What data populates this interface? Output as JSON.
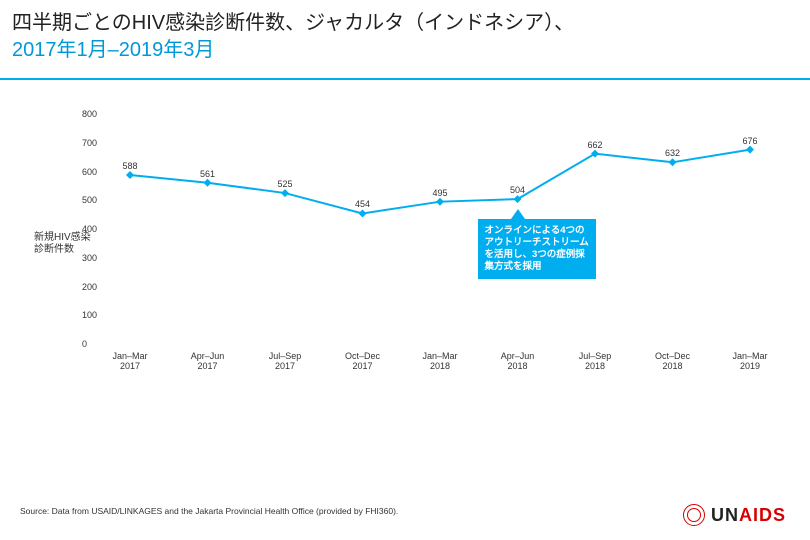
{
  "title": {
    "line1_prefix": "四半期ごとのHIV感染診断件数、ジャカルタ（インドネシア）、",
    "line2_blue": "2017年1月–2019年3月"
  },
  "chart": {
    "type": "line",
    "ylabel": "新規HIV感染診断件数",
    "ylim": [
      0,
      800
    ],
    "ytick_step": 100,
    "yticks": [
      "0",
      "100",
      "200",
      "300",
      "400",
      "500",
      "600",
      "700",
      "800"
    ],
    "categories": [
      "Jan–Mar 2017",
      "Apr–Jun 2017",
      "Jul–Sep 2017",
      "Oct–Dec 2017",
      "Jan–Mar 2018",
      "Apr–Jun 2018",
      "Jul–Sep 2018",
      "Oct–Dec 2018",
      "Jan–Mar 2019"
    ],
    "values": [
      588,
      561,
      525,
      454,
      495,
      504,
      662,
      632,
      676
    ],
    "line_color": "#00aef0",
    "line_width": 2,
    "marker_shape": "diamond",
    "marker_size": 8,
    "marker_fill": "#00aef0",
    "background_color": "#ffffff",
    "label_fontsize": 9,
    "callout": {
      "text_l1": "オンラインによる4つの",
      "text_l2": "アウトリーチストリーム",
      "text_l3": "を活用し、3つの症例採",
      "text_l4": "集方式を採用",
      "anchor_index": 5,
      "box_color": "#00aef0",
      "text_color": "#ffffff"
    }
  },
  "source": "Source: Data from USAID/LINKAGES and the Jakarta Provincial Health Office (provided by FHI360).",
  "logo": {
    "un": "UN",
    "aids": "AIDS"
  }
}
